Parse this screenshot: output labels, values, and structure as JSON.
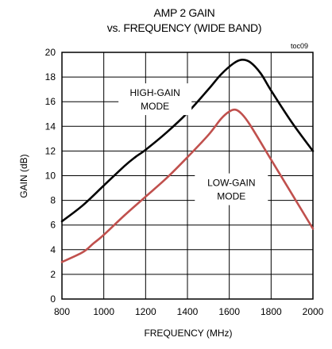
{
  "chart_data": {
    "type": "line",
    "title_line1": "AMP 2 GAIN",
    "title_line2": "vs. FREQUENCY (WIDE BAND)",
    "xlabel": "FREQUENCY (MHz)",
    "ylabel": "GAIN (dB)",
    "corner_note": "toc09",
    "xlim": [
      800,
      2000
    ],
    "ylim": [
      0,
      20
    ],
    "x_ticks": [
      800,
      1000,
      1200,
      1400,
      1600,
      1800,
      2000
    ],
    "y_ticks": [
      0,
      2,
      4,
      6,
      8,
      10,
      12,
      14,
      16,
      18,
      20
    ],
    "grid": true,
    "series": [
      {
        "name": "HIGH-GAIN MODE",
        "color": "#000000",
        "points": [
          [
            800,
            6.3
          ],
          [
            900,
            7.6
          ],
          [
            1000,
            9.2
          ],
          [
            1100,
            10.8
          ],
          [
            1150,
            11.5
          ],
          [
            1200,
            12.1
          ],
          [
            1300,
            13.5
          ],
          [
            1400,
            15.1
          ],
          [
            1500,
            17.0
          ],
          [
            1560,
            18.2
          ],
          [
            1620,
            19.1
          ],
          [
            1660,
            19.4
          ],
          [
            1700,
            19.2
          ],
          [
            1750,
            18.3
          ],
          [
            1800,
            16.9
          ],
          [
            1900,
            14.3
          ],
          [
            2000,
            12.0
          ]
        ]
      },
      {
        "name": "LOW-GAIN MODE",
        "color": "#c0504d",
        "points": [
          [
            800,
            3.0
          ],
          [
            900,
            3.8
          ],
          [
            950,
            4.5
          ],
          [
            1000,
            5.2
          ],
          [
            1100,
            6.8
          ],
          [
            1200,
            8.3
          ],
          [
            1300,
            9.8
          ],
          [
            1400,
            11.5
          ],
          [
            1500,
            13.3
          ],
          [
            1560,
            14.6
          ],
          [
            1600,
            15.2
          ],
          [
            1630,
            15.35
          ],
          [
            1660,
            15.0
          ],
          [
            1700,
            14.1
          ],
          [
            1800,
            11.3
          ],
          [
            1900,
            8.5
          ],
          [
            2000,
            5.7
          ]
        ]
      }
    ],
    "annotations": [
      {
        "lines": [
          "HIGH-GAIN",
          "MODE"
        ],
        "x": 1245,
        "y": 16.2
      },
      {
        "lines": [
          "LOW-GAIN",
          "MODE"
        ],
        "x": 1610,
        "y": 8.9
      }
    ]
  }
}
